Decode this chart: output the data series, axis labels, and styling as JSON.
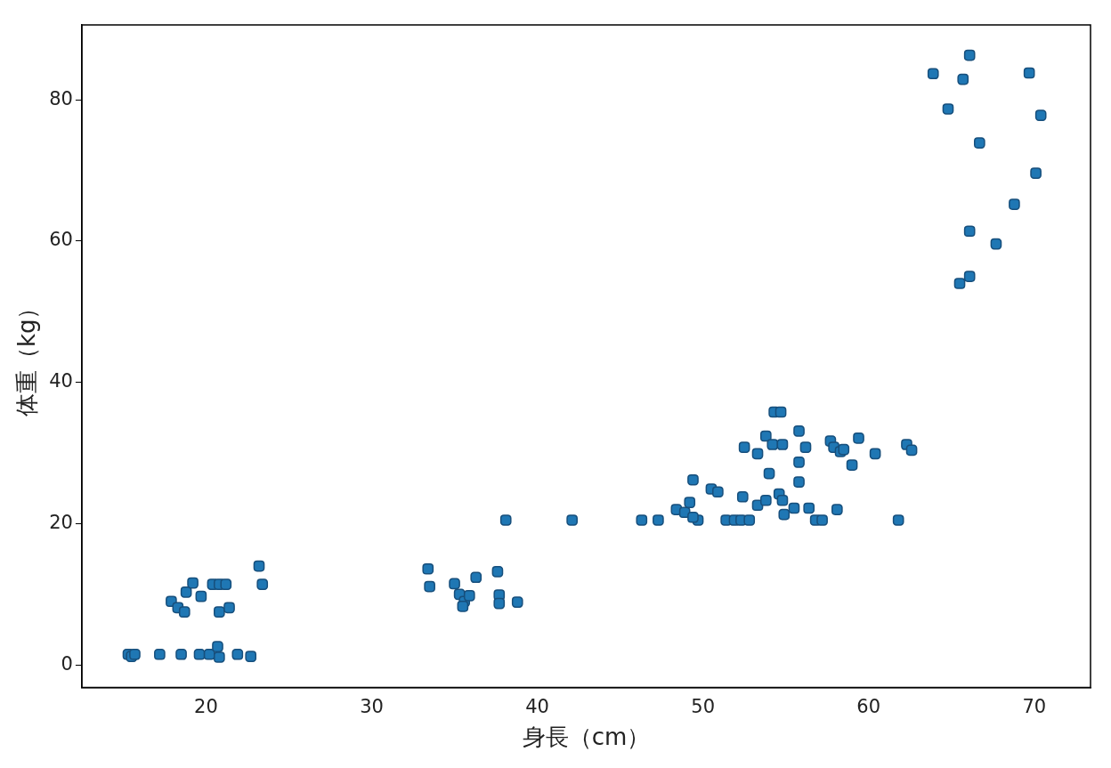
{
  "chart_data": {
    "type": "scatter",
    "xlabel": "身長（cm）",
    "ylabel": "体重（kg）",
    "xlim": [
      12.5,
      73.4
    ],
    "ylim": [
      -3.2,
      90.6
    ],
    "xticks": [
      20,
      30,
      40,
      50,
      60,
      70
    ],
    "yticks": [
      0,
      20,
      40,
      60,
      80
    ],
    "grid": false,
    "legend": false,
    "marker": "square",
    "series": [
      {
        "color": "#1f77b4",
        "x": [
          15.3,
          15.5,
          15.7,
          17.2,
          18.5,
          19.6,
          20.2,
          20.7,
          20.8,
          21.9,
          22.7,
          17.9,
          18.3,
          18.7,
          18.8,
          19.2,
          19.7,
          20.4,
          20.8,
          21.2,
          20.8,
          21.4,
          23.2,
          23.4,
          33.4,
          33.5,
          35.0,
          35.3,
          35.6,
          35.5,
          35.9,
          36.3,
          37.6,
          37.7,
          37.7,
          38.8,
          38.1,
          42.1,
          46.3,
          47.3,
          49.7,
          51.4,
          51.9,
          52.3,
          52.8,
          56.8,
          57.2,
          61.8,
          48.4,
          48.9,
          49.2,
          49.4,
          49.4,
          50.5,
          50.9,
          52.4,
          52.5,
          53.3,
          53.8,
          54.2,
          54.8,
          54.0,
          53.3,
          53.8,
          54.6,
          54.8,
          54.9,
          55.5,
          54.3,
          54.7,
          55.8,
          56.2,
          55.8,
          55.8,
          56.4,
          57.7,
          57.9,
          58.3,
          58.5,
          59.0,
          59.4,
          60.4,
          58.1,
          62.3,
          62.6,
          66.1,
          63.9,
          65.7,
          69.7,
          64.8,
          70.4,
          66.7,
          70.1,
          68.8,
          66.1,
          67.7,
          66.1,
          65.5
        ],
        "values": [
          1.5,
          1.2,
          1.5,
          1.5,
          1.5,
          1.5,
          1.5,
          2.6,
          1.1,
          1.5,
          1.2,
          9.0,
          8.1,
          7.5,
          10.3,
          11.6,
          9.7,
          11.4,
          11.4,
          11.4,
          7.5,
          8.1,
          14.0,
          11.4,
          13.6,
          11.1,
          11.5,
          10.0,
          9.0,
          8.3,
          9.8,
          12.4,
          13.2,
          9.9,
          8.7,
          8.9,
          20.5,
          20.5,
          20.5,
          20.5,
          20.5,
          20.5,
          20.5,
          20.5,
          20.5,
          20.5,
          20.5,
          20.5,
          22.0,
          21.6,
          23.0,
          20.9,
          26.2,
          24.9,
          24.5,
          23.8,
          30.8,
          29.9,
          32.4,
          31.2,
          31.2,
          27.1,
          22.6,
          23.3,
          24.2,
          23.3,
          21.3,
          22.2,
          35.8,
          35.8,
          33.1,
          30.8,
          28.7,
          25.9,
          22.2,
          31.7,
          30.8,
          30.2,
          30.5,
          28.3,
          32.1,
          29.9,
          22.0,
          31.2,
          30.4,
          86.3,
          83.7,
          82.9,
          83.8,
          78.7,
          77.8,
          73.9,
          69.6,
          65.2,
          61.4,
          59.6,
          55.0,
          54.0
        ]
      }
    ]
  }
}
